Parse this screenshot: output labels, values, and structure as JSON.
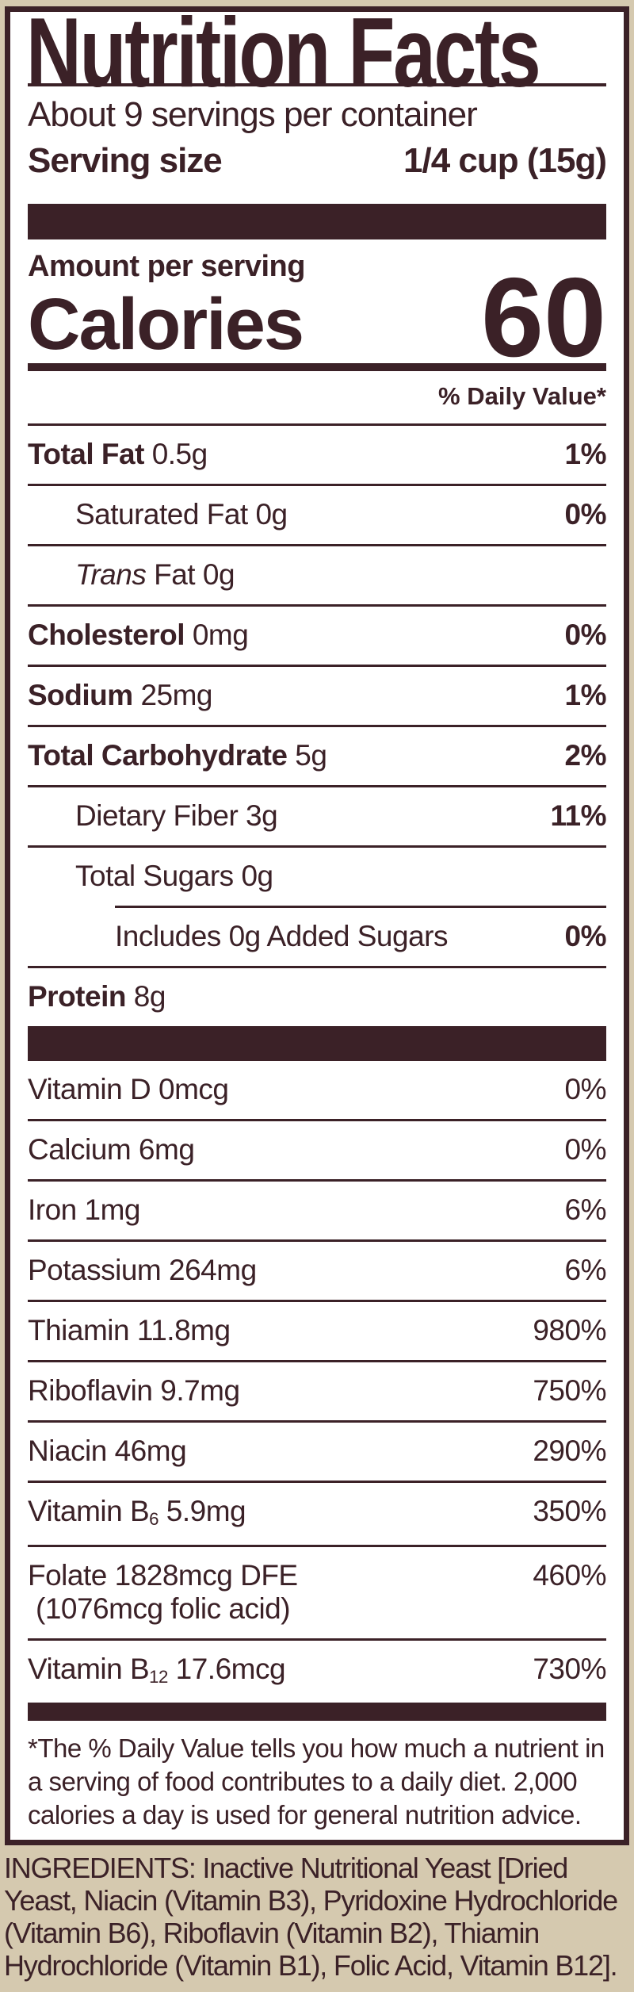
{
  "colors": {
    "ink": "#3b2127",
    "background_tan": "#d5c9af",
    "label_paper": "#ffffff"
  },
  "label": {
    "title": "Nutrition Facts",
    "servings_per_container": "About 9 servings per container",
    "serving_size_label": "Serving size",
    "serving_size_value": "1/4 cup (15g)",
    "amount_per_serving": "Amount per serving",
    "calories_label": "Calories",
    "calories_value": "60",
    "daily_value_header": "% Daily Value*",
    "main_rows": [
      {
        "parts": [
          {
            "text": "Total Fat",
            "bold": true
          },
          {
            "text": " 0.5g"
          }
        ],
        "dv": "1%",
        "dvBold": true,
        "indent": 0
      },
      {
        "parts": [
          {
            "text": "Saturated Fat 0g"
          }
        ],
        "dv": "0%",
        "dvBold": true,
        "indent": 1
      },
      {
        "parts": [
          {
            "text": "Trans",
            "italic": true
          },
          {
            "text": " Fat 0g"
          }
        ],
        "dv": "",
        "indent": 1
      },
      {
        "parts": [
          {
            "text": "Cholesterol",
            "bold": true
          },
          {
            "text": " 0mg"
          }
        ],
        "dv": "0%",
        "dvBold": true,
        "indent": 0
      },
      {
        "parts": [
          {
            "text": "Sodium",
            "bold": true
          },
          {
            "text": " 25mg"
          }
        ],
        "dv": "1%",
        "dvBold": true,
        "indent": 0
      },
      {
        "parts": [
          {
            "text": "Total Carbohydrate",
            "bold": true
          },
          {
            "text": " 5g"
          }
        ],
        "dv": "2%",
        "dvBold": true,
        "indent": 0
      },
      {
        "parts": [
          {
            "text": "Dietary Fiber 3g"
          }
        ],
        "dv": "11%",
        "dvBold": true,
        "indent": 1
      },
      {
        "parts": [
          {
            "text": "Total Sugars 0g"
          }
        ],
        "dv": "",
        "indent": 1
      },
      {
        "parts": [
          {
            "text": "Includes 0g Added Sugars"
          }
        ],
        "dv": "0%",
        "dvBold": true,
        "indent": 2,
        "sep": "partial"
      },
      {
        "parts": [
          {
            "text": "Protein",
            "bold": true
          },
          {
            "text": " 8g"
          }
        ],
        "dv": "",
        "indent": 0
      }
    ],
    "vitamin_rows": [
      {
        "parts": [
          {
            "text": "Vitamin D 0mcg"
          }
        ],
        "dv": "0%"
      },
      {
        "parts": [
          {
            "text": "Calcium 6mg"
          }
        ],
        "dv": "0%"
      },
      {
        "parts": [
          {
            "text": "Iron 1mg"
          }
        ],
        "dv": "6%"
      },
      {
        "parts": [
          {
            "text": "Potassium 264mg"
          }
        ],
        "dv": "6%"
      },
      {
        "parts": [
          {
            "text": "Thiamin 11.8mg"
          }
        ],
        "dv": "980%"
      },
      {
        "parts": [
          {
            "text": "Riboflavin 9.7mg"
          }
        ],
        "dv": "750%"
      },
      {
        "parts": [
          {
            "text": "Niacin 46mg"
          }
        ],
        "dv": "290%"
      },
      {
        "parts": [
          {
            "text": "Vitamin B"
          },
          {
            "text": "6",
            "sub": true
          },
          {
            "text": " 5.9mg"
          }
        ],
        "dv": "350%"
      },
      {
        "parts": [
          {
            "text": "Folate 1828mcg DFE"
          }
        ],
        "line2": "(1076mcg folic acid)",
        "dv": "460%"
      },
      {
        "parts": [
          {
            "text": "Vitamin B"
          },
          {
            "text": "12",
            "sub": true
          },
          {
            "text": " 17.6mcg"
          }
        ],
        "dv": "730%"
      }
    ],
    "footnote": "*The % Daily Value tells you how much a nutrient in a serving of food contributes to a daily diet. 2,000 calories a day is used for general nutrition advice."
  },
  "ingredients": "INGREDIENTS: Inactive Nutritional Yeast [Dried Yeast, Niacin (Vitamin B3), Pyridoxine Hydrochloride (Vitamin B6), Riboflavin (Vitamin B2), Thiamin Hydrochloride (Vitamin B1), Folic Acid, Vitamin B12]."
}
